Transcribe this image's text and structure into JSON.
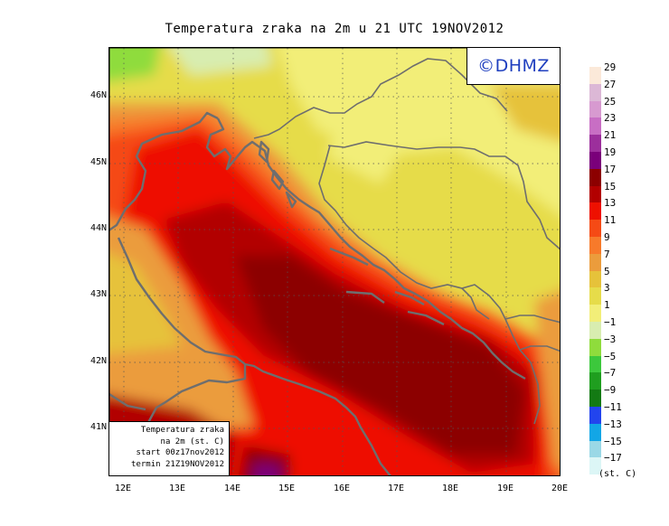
{
  "title": "Temperatura zraka na 2m u 21 UTC 19NOV2012",
  "logo": "©DHMZ",
  "infobox": [
    "Temperatura zraka",
    "na 2m (st. C)",
    "start 00z17nov2012",
    "termin 21Z19NOV2012"
  ],
  "lat_labels": [
    "46N",
    "45N",
    "44N",
    "43N",
    "42N",
    "41N"
  ],
  "lon_labels": [
    "12E",
    "13E",
    "14E",
    "15E",
    "16E",
    "17E",
    "18E",
    "19E",
    "20E"
  ],
  "legend": {
    "labels": [
      "29",
      "27",
      "25",
      "23",
      "21",
      "19",
      "17",
      "15",
      "13",
      "11",
      "9",
      "7",
      "5",
      "3",
      "1",
      "−1",
      "−3",
      "−5",
      "−7",
      "−9",
      "−11",
      "−13",
      "−15",
      "−17"
    ],
    "colors": [
      "#fbe9d9",
      "#dcb8d6",
      "#d79ad0",
      "#c86ec4",
      "#9c2f9c",
      "#7a007a",
      "#8c0000",
      "#b20000",
      "#ee1000",
      "#f54a15",
      "#f77a2a",
      "#eb9c3c",
      "#e6c23a",
      "#e6dc4a",
      "#f2ee78",
      "#d8edb0",
      "#8fdc3c",
      "#3cc83c",
      "#1f9e1f",
      "#137a13",
      "#2244ee",
      "#12a6e6",
      "#9ad8e6",
      "#dcf6f6"
    ],
    "unit": "(st. C)"
  },
  "icons": {
    "logo": "dhmz-logo"
  }
}
